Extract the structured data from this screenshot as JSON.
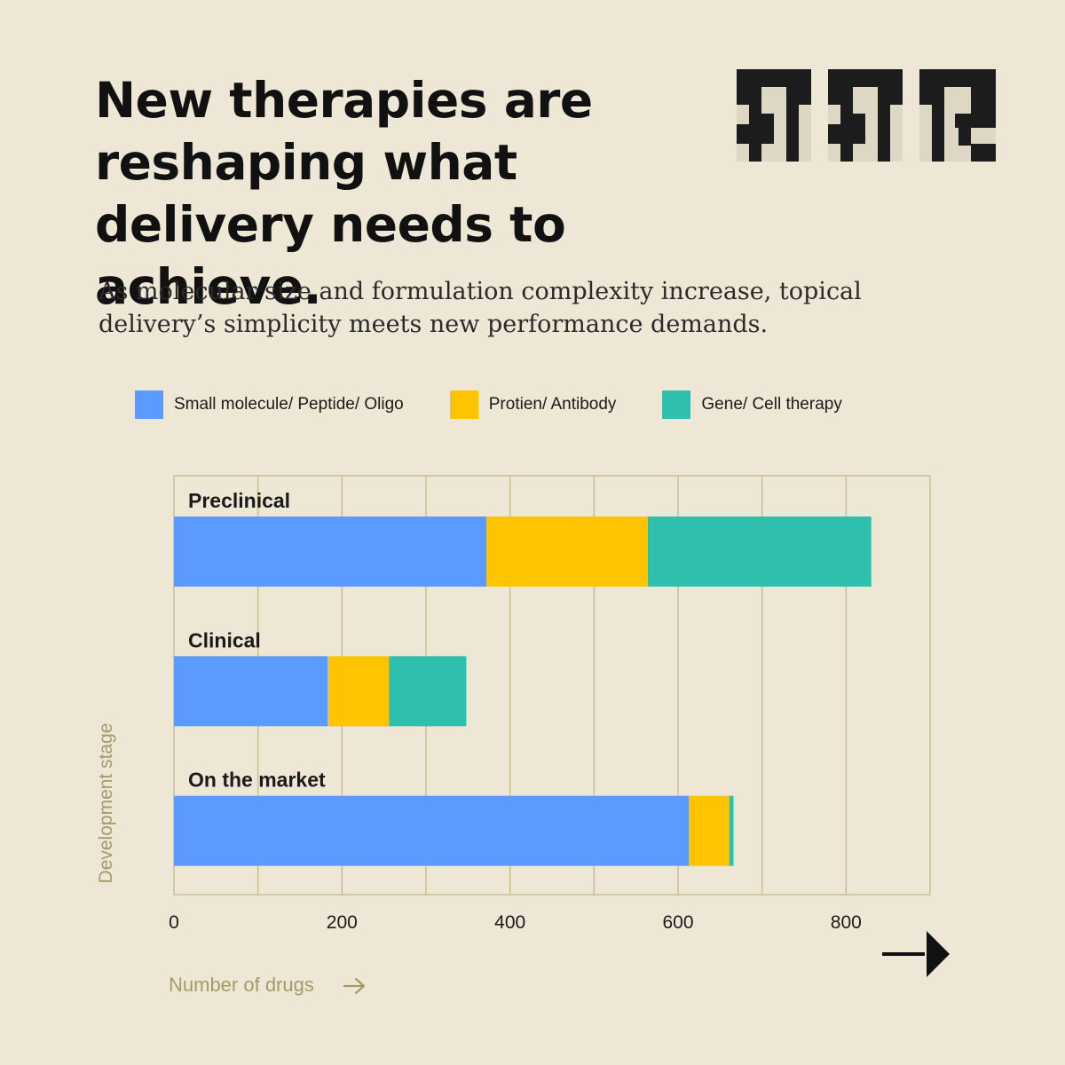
{
  "header": {
    "title": "New therapies are reshaping what delivery needs to achieve.",
    "subtitle": "As molecular size and formulation complexity increase, topical delivery’s simplicity meets new performance demands."
  },
  "colors": {
    "background": "#efe7d6",
    "small_molecule": "#5b9bff",
    "protein": "#ffc400",
    "gene_cell": "#2ebfad",
    "grid": "#c9bd94",
    "axis_label": "#a69a6a"
  },
  "icons": {
    "logo": "pixel-block-logo",
    "xlabel_arrow": "arrow-right-icon",
    "corner_arrow": "arrow-right-icon"
  },
  "chart_data": {
    "type": "bar",
    "orientation": "horizontal",
    "stacked": true,
    "categories": [
      "Preclinical",
      "Clinical",
      "On the market"
    ],
    "series": [
      {
        "name": "Small molecule/ Peptide/ Oligo",
        "values": [
          372,
          183,
          613
        ]
      },
      {
        "name": "Protien/ Antibody",
        "values": [
          192,
          73,
          48
        ]
      },
      {
        "name": "Gene/ Cell therapy",
        "values": [
          266,
          92,
          5
        ]
      }
    ],
    "xlabel": "Number of drugs",
    "ylabel": "Development stage",
    "xlim": [
      0,
      900
    ],
    "xticks": [
      0,
      200,
      400,
      600,
      800
    ],
    "grid": true,
    "legend": "top"
  }
}
